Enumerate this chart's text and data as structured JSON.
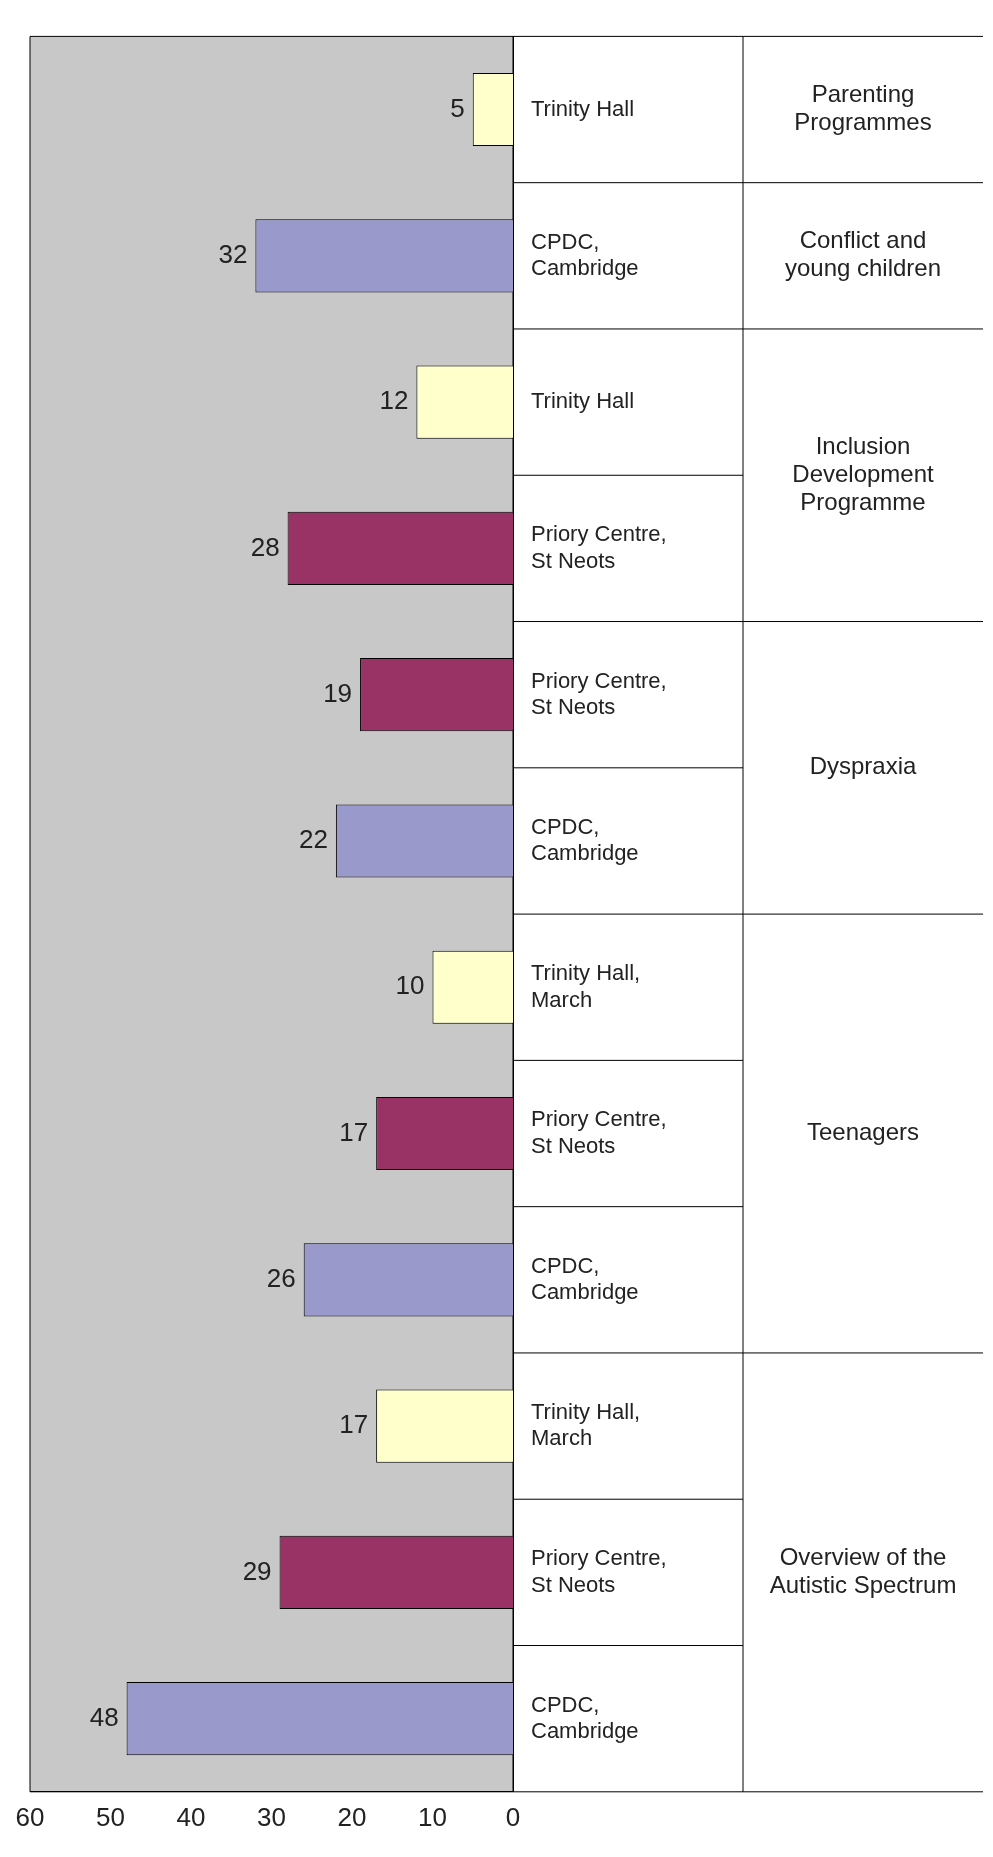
{
  "chart_data": {
    "type": "bar",
    "orientation": "horizontal",
    "categories": [
      "Trinity Hall",
      "CPDC, Cambridge",
      "Trinity Hall",
      "Priory Centre, St Neots",
      "Priory Centre, St Neots",
      "CPDC, Cambridge",
      "Trinity Hall, March",
      "Priory Centre, St Neots",
      "CPDC, Cambridge",
      "Trinity Hall, March",
      "Priory Centre, St Neots",
      "CPDC, Cambridge"
    ],
    "values": [
      5,
      32,
      12,
      28,
      19,
      22,
      10,
      17,
      26,
      17,
      29,
      48
    ],
    "colors": [
      "#ffffcc",
      "#9999cc",
      "#ffffcc",
      "#993366",
      "#993366",
      "#9999cc",
      "#ffffcc",
      "#993366",
      "#9999cc",
      "#ffffcc",
      "#993366",
      "#9999cc"
    ],
    "xlim": [
      60,
      0
    ],
    "xticks": [
      0,
      10,
      20,
      30,
      40,
      50,
      60
    ],
    "grid": false,
    "legend": false,
    "data_labels": true,
    "annotations": [
      "Parenting Programmes",
      "Conflict and young children",
      "Inclusion Development Programme",
      "Dyspraxia",
      "Teenagers",
      "Overview of the Autistic Spectrum"
    ]
  }
}
